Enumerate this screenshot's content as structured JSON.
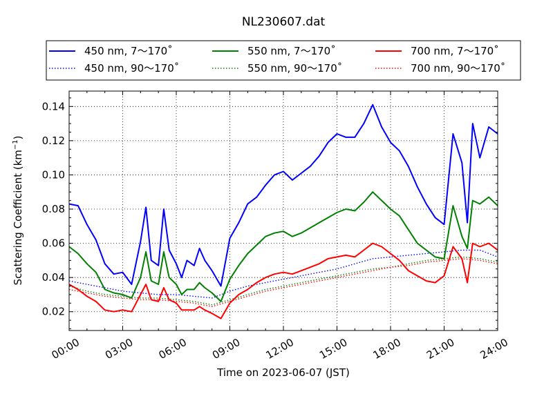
{
  "chart_data": {
    "type": "line",
    "title": "NL230607.dat",
    "xlabel": "Time on 2023-06-07 (JST)",
    "ylabel": "Scattering Coefficient (km",
    "ylabel_sup": "−1",
    "ylabel_close": ")",
    "xlim_hours": [
      0,
      24
    ],
    "ylim": [
      0.009,
      0.149
    ],
    "x_ticks": [
      {
        "hour": 0,
        "label": "00:00"
      },
      {
        "hour": 3,
        "label": "03:00"
      },
      {
        "hour": 6,
        "label": "06:00"
      },
      {
        "hour": 9,
        "label": "09:00"
      },
      {
        "hour": 12,
        "label": "12:00"
      },
      {
        "hour": 15,
        "label": "15:00"
      },
      {
        "hour": 18,
        "label": "18:00"
      },
      {
        "hour": 21,
        "label": "21:00"
      },
      {
        "hour": 24,
        "label": "24:00"
      }
    ],
    "y_ticks": [
      {
        "value": 0.02,
        "label": "0.02"
      },
      {
        "value": 0.04,
        "label": "0.04"
      },
      {
        "value": 0.06,
        "label": "0.06"
      },
      {
        "value": 0.08,
        "label": "0.08"
      },
      {
        "value": 0.1,
        "label": "0.10"
      },
      {
        "value": 0.12,
        "label": "0.12"
      },
      {
        "value": 0.14,
        "label": "0.14"
      }
    ],
    "grid": true,
    "legend_position": "top",
    "series": [
      {
        "name": "450 nm, 7～170˚",
        "color": "#0000ff",
        "style": "solid",
        "points": [
          [
            0,
            0.083
          ],
          [
            0.5,
            0.082
          ],
          [
            1,
            0.071
          ],
          [
            1.5,
            0.062
          ],
          [
            2,
            0.048
          ],
          [
            2.5,
            0.042
          ],
          [
            3,
            0.043
          ],
          [
            3.5,
            0.036
          ],
          [
            4,
            0.061
          ],
          [
            4.3,
            0.081
          ],
          [
            4.6,
            0.05
          ],
          [
            5,
            0.047
          ],
          [
            5.3,
            0.08
          ],
          [
            5.6,
            0.056
          ],
          [
            6,
            0.048
          ],
          [
            6.3,
            0.04
          ],
          [
            6.6,
            0.05
          ],
          [
            7,
            0.047
          ],
          [
            7.3,
            0.057
          ],
          [
            7.6,
            0.05
          ],
          [
            8,
            0.044
          ],
          [
            8.5,
            0.035
          ],
          [
            9,
            0.063
          ],
          [
            9.5,
            0.072
          ],
          [
            10,
            0.083
          ],
          [
            10.5,
            0.087
          ],
          [
            11,
            0.094
          ],
          [
            11.5,
            0.1
          ],
          [
            12,
            0.102
          ],
          [
            12.5,
            0.097
          ],
          [
            13,
            0.101
          ],
          [
            13.5,
            0.105
          ],
          [
            14,
            0.111
          ],
          [
            14.5,
            0.119
          ],
          [
            15,
            0.124
          ],
          [
            15.5,
            0.122
          ],
          [
            16,
            0.122
          ],
          [
            16.5,
            0.13
          ],
          [
            17,
            0.141
          ],
          [
            17.5,
            0.128
          ],
          [
            18,
            0.119
          ],
          [
            18.5,
            0.114
          ],
          [
            19,
            0.105
          ],
          [
            19.5,
            0.093
          ],
          [
            20,
            0.083
          ],
          [
            20.5,
            0.075
          ],
          [
            21,
            0.071
          ],
          [
            21.5,
            0.124
          ],
          [
            22,
            0.107
          ],
          [
            22.3,
            0.072
          ],
          [
            22.6,
            0.13
          ],
          [
            23,
            0.11
          ],
          [
            23.5,
            0.128
          ],
          [
            24,
            0.124
          ]
        ]
      },
      {
        "name": "450 nm, 90～170˚",
        "color": "#0000ff",
        "style": "dotted",
        "points": [
          [
            0,
            0.038
          ],
          [
            1,
            0.036
          ],
          [
            2,
            0.034
          ],
          [
            3,
            0.032
          ],
          [
            4,
            0.031
          ],
          [
            5,
            0.03
          ],
          [
            6,
            0.03
          ],
          [
            7,
            0.029
          ],
          [
            8,
            0.028
          ],
          [
            9,
            0.032
          ],
          [
            10,
            0.035
          ],
          [
            11,
            0.037
          ],
          [
            12,
            0.039
          ],
          [
            13,
            0.041
          ],
          [
            14,
            0.043
          ],
          [
            15,
            0.045
          ],
          [
            16,
            0.048
          ],
          [
            17,
            0.051
          ],
          [
            18,
            0.052
          ],
          [
            19,
            0.053
          ],
          [
            20,
            0.054
          ],
          [
            21,
            0.055
          ],
          [
            22,
            0.056
          ],
          [
            23,
            0.056
          ],
          [
            24,
            0.052
          ]
        ]
      },
      {
        "name": "550 nm, 7～170˚",
        "color": "#008000",
        "style": "solid",
        "points": [
          [
            0,
            0.058
          ],
          [
            0.5,
            0.054
          ],
          [
            1,
            0.048
          ],
          [
            1.5,
            0.043
          ],
          [
            2,
            0.033
          ],
          [
            2.5,
            0.031
          ],
          [
            3,
            0.03
          ],
          [
            3.5,
            0.028
          ],
          [
            4,
            0.04
          ],
          [
            4.3,
            0.055
          ],
          [
            4.6,
            0.038
          ],
          [
            5,
            0.036
          ],
          [
            5.3,
            0.055
          ],
          [
            5.6,
            0.04
          ],
          [
            6,
            0.036
          ],
          [
            6.3,
            0.03
          ],
          [
            6.6,
            0.033
          ],
          [
            7,
            0.033
          ],
          [
            7.3,
            0.037
          ],
          [
            7.6,
            0.034
          ],
          [
            8,
            0.031
          ],
          [
            8.5,
            0.026
          ],
          [
            9,
            0.039
          ],
          [
            9.5,
            0.047
          ],
          [
            10,
            0.054
          ],
          [
            10.5,
            0.059
          ],
          [
            11,
            0.064
          ],
          [
            11.5,
            0.066
          ],
          [
            12,
            0.067
          ],
          [
            12.5,
            0.064
          ],
          [
            13,
            0.066
          ],
          [
            13.5,
            0.069
          ],
          [
            14,
            0.072
          ],
          [
            14.5,
            0.075
          ],
          [
            15,
            0.078
          ],
          [
            15.5,
            0.08
          ],
          [
            16,
            0.079
          ],
          [
            16.5,
            0.084
          ],
          [
            17,
            0.09
          ],
          [
            17.5,
            0.085
          ],
          [
            18,
            0.08
          ],
          [
            18.5,
            0.076
          ],
          [
            19,
            0.068
          ],
          [
            19.5,
            0.06
          ],
          [
            20,
            0.056
          ],
          [
            20.5,
            0.052
          ],
          [
            21,
            0.051
          ],
          [
            21.5,
            0.082
          ],
          [
            22,
            0.064
          ],
          [
            22.3,
            0.057
          ],
          [
            22.6,
            0.085
          ],
          [
            23,
            0.083
          ],
          [
            23.5,
            0.087
          ],
          [
            24,
            0.082
          ]
        ]
      },
      {
        "name": "550 nm, 90～170˚",
        "color": "#008000",
        "style": "dotted",
        "points": [
          [
            0,
            0.035
          ],
          [
            1,
            0.032
          ],
          [
            2,
            0.03
          ],
          [
            3,
            0.029
          ],
          [
            4,
            0.028
          ],
          [
            5,
            0.028
          ],
          [
            6,
            0.027
          ],
          [
            7,
            0.026
          ],
          [
            8,
            0.024
          ],
          [
            9,
            0.027
          ],
          [
            10,
            0.03
          ],
          [
            11,
            0.033
          ],
          [
            12,
            0.035
          ],
          [
            13,
            0.037
          ],
          [
            14,
            0.039
          ],
          [
            15,
            0.041
          ],
          [
            16,
            0.043
          ],
          [
            17,
            0.045
          ],
          [
            18,
            0.046
          ],
          [
            19,
            0.048
          ],
          [
            20,
            0.05
          ],
          [
            21,
            0.051
          ],
          [
            22,
            0.052
          ],
          [
            23,
            0.051
          ],
          [
            24,
            0.049
          ]
        ]
      },
      {
        "name": "700 nm, 7～170˚",
        "color": "#ff0000",
        "style": "solid",
        "points": [
          [
            0,
            0.036
          ],
          [
            0.5,
            0.033
          ],
          [
            1,
            0.029
          ],
          [
            1.5,
            0.026
          ],
          [
            2,
            0.021
          ],
          [
            2.5,
            0.02
          ],
          [
            3,
            0.021
          ],
          [
            3.5,
            0.02
          ],
          [
            4,
            0.03
          ],
          [
            4.3,
            0.036
          ],
          [
            4.6,
            0.027
          ],
          [
            5,
            0.026
          ],
          [
            5.3,
            0.034
          ],
          [
            5.6,
            0.027
          ],
          [
            6,
            0.025
          ],
          [
            6.3,
            0.021
          ],
          [
            6.6,
            0.021
          ],
          [
            7,
            0.021
          ],
          [
            7.3,
            0.023
          ],
          [
            7.6,
            0.021
          ],
          [
            8,
            0.019
          ],
          [
            8.5,
            0.016
          ],
          [
            9,
            0.025
          ],
          [
            9.5,
            0.03
          ],
          [
            10,
            0.033
          ],
          [
            10.5,
            0.037
          ],
          [
            11,
            0.04
          ],
          [
            11.5,
            0.042
          ],
          [
            12,
            0.043
          ],
          [
            12.5,
            0.042
          ],
          [
            13,
            0.044
          ],
          [
            13.5,
            0.046
          ],
          [
            14,
            0.048
          ],
          [
            14.5,
            0.051
          ],
          [
            15,
            0.052
          ],
          [
            15.5,
            0.053
          ],
          [
            16,
            0.052
          ],
          [
            16.5,
            0.056
          ],
          [
            17,
            0.06
          ],
          [
            17.5,
            0.058
          ],
          [
            18,
            0.054
          ],
          [
            18.5,
            0.05
          ],
          [
            19,
            0.044
          ],
          [
            19.5,
            0.041
          ],
          [
            20,
            0.038
          ],
          [
            20.5,
            0.037
          ],
          [
            21,
            0.041
          ],
          [
            21.5,
            0.058
          ],
          [
            22,
            0.051
          ],
          [
            22.3,
            0.037
          ],
          [
            22.6,
            0.06
          ],
          [
            23,
            0.058
          ],
          [
            23.5,
            0.06
          ],
          [
            24,
            0.056
          ]
        ]
      },
      {
        "name": "700 nm, 90～170˚",
        "color": "#ff0000",
        "style": "dotted",
        "points": [
          [
            0,
            0.033
          ],
          [
            1,
            0.031
          ],
          [
            2,
            0.029
          ],
          [
            3,
            0.028
          ],
          [
            4,
            0.027
          ],
          [
            5,
            0.027
          ],
          [
            6,
            0.026
          ],
          [
            7,
            0.025
          ],
          [
            8,
            0.023
          ],
          [
            9,
            0.026
          ],
          [
            10,
            0.029
          ],
          [
            11,
            0.032
          ],
          [
            12,
            0.034
          ],
          [
            13,
            0.036
          ],
          [
            14,
            0.038
          ],
          [
            15,
            0.04
          ],
          [
            16,
            0.042
          ],
          [
            17,
            0.044
          ],
          [
            18,
            0.046
          ],
          [
            19,
            0.047
          ],
          [
            20,
            0.049
          ],
          [
            21,
            0.05
          ],
          [
            22,
            0.051
          ],
          [
            23,
            0.05
          ],
          [
            24,
            0.048
          ]
        ]
      }
    ]
  }
}
